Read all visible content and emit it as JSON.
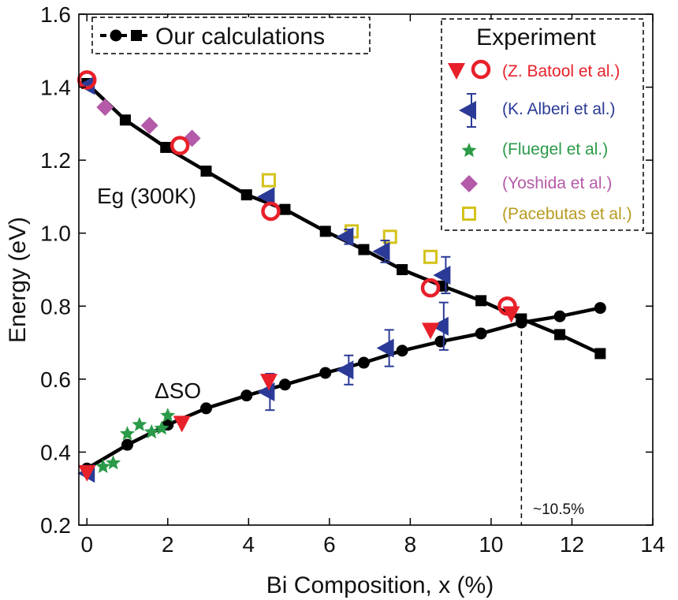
{
  "chart_data": {
    "type": "scatter",
    "title": "",
    "xlabel": "Bi Composition, x (%)",
    "ylabel": "Energy (eV)",
    "xlim": [
      -0.2,
      14
    ],
    "ylim": [
      0.2,
      1.6
    ],
    "xticks": [
      0,
      2,
      4,
      6,
      8,
      10,
      12,
      14
    ],
    "yticks": [
      0.2,
      0.4,
      0.6,
      0.8,
      1.0,
      1.2,
      1.4,
      1.6
    ],
    "xtick_labels": [
      "0",
      "2",
      "4",
      "6",
      "8",
      "10",
      "12",
      "14"
    ],
    "ytick_labels": [
      "0.2",
      "0.4",
      "0.6",
      "0.8",
      "1.0",
      "1.2",
      "1.4",
      "1.6"
    ],
    "grid": false,
    "annotations": {
      "eg": "Eg (300K)",
      "so": "ΔSO",
      "crossover": "~10.5%",
      "crossover_x": 10.75
    },
    "legend_ours": {
      "label": "Our calculations"
    },
    "legend_experiment": {
      "title": "Experiment",
      "entries": [
        {
          "label": "(Z. Batool et al.)",
          "color": "#e8202a"
        },
        {
          "label": "(K. Alberi et al.)",
          "color": "#2b3a96"
        },
        {
          "label": "(Fluegel et al.)",
          "color": "#2a9a48"
        },
        {
          "label": "(Yoshida et al.)",
          "color": "#b45aa8"
        },
        {
          "label": "(Pacebutas et al.)",
          "color": "#b79a1f"
        }
      ]
    },
    "series": [
      {
        "name": "Our calculations Eg",
        "marker": "square",
        "color": "#000000",
        "line": true,
        "x": [
          0,
          0.95,
          1.95,
          2.95,
          3.95,
          4.9,
          5.9,
          6.85,
          7.8,
          8.8,
          9.75,
          10.75,
          11.7,
          12.7
        ],
        "y": [
          1.41,
          1.31,
          1.235,
          1.17,
          1.105,
          1.065,
          1.005,
          0.955,
          0.9,
          0.855,
          0.815,
          0.765,
          0.722,
          0.67
        ]
      },
      {
        "name": "Our calculations ΔSO",
        "marker": "circle",
        "color": "#000000",
        "line": true,
        "x": [
          0,
          1.0,
          2.0,
          2.95,
          3.95,
          4.9,
          5.9,
          6.85,
          7.8,
          8.75,
          9.75,
          10.75,
          11.7,
          12.7
        ],
        "y": [
          0.355,
          0.42,
          0.475,
          0.52,
          0.555,
          0.585,
          0.617,
          0.645,
          0.678,
          0.703,
          0.725,
          0.755,
          0.772,
          0.795
        ]
      },
      {
        "name": "Z. Batool et al. Eg",
        "marker": "circle-open",
        "color": "#e8202a",
        "x": [
          0,
          2.3,
          4.55,
          8.5,
          10.4
        ],
        "y": [
          1.42,
          1.24,
          1.06,
          0.85,
          0.8
        ]
      },
      {
        "name": "Z. Batool et al. ΔSO",
        "marker": "triangle-down",
        "color": "#e8202a",
        "x": [
          0,
          2.35,
          4.5,
          8.5,
          10.5
        ],
        "y": [
          0.345,
          0.48,
          0.595,
          0.735,
          0.78
        ]
      },
      {
        "name": "K. Alberi et al. Eg",
        "marker": "triangle-left",
        "color": "#2b3a96",
        "x": [
          0,
          4.45,
          6.4,
          7.3,
          8.8
        ],
        "y": [
          1.405,
          1.1,
          0.99,
          0.95,
          0.885
        ],
        "err": [
          0,
          0,
          0.02,
          0.03,
          0.05
        ]
      },
      {
        "name": "K. Alberi et al. ΔSO",
        "marker": "triangle-left",
        "color": "#2b3a96",
        "x": [
          0,
          4.45,
          6.4,
          7.4,
          8.75
        ],
        "y": [
          0.342,
          0.565,
          0.625,
          0.685,
          0.745
        ],
        "err": [
          0,
          0.05,
          0.04,
          0.05,
          0.065
        ]
      },
      {
        "name": "Fluegel et al.",
        "marker": "star",
        "color": "#2a9a48",
        "x": [
          0.4,
          0.65,
          1.0,
          1.3,
          1.6,
          1.85,
          2.0
        ],
        "y": [
          0.36,
          0.37,
          0.45,
          0.475,
          0.455,
          0.465,
          0.5
        ]
      },
      {
        "name": "Yoshida et al.",
        "marker": "diamond",
        "color": "#b45aa8",
        "x": [
          0.45,
          1.55,
          2.6
        ],
        "y": [
          1.345,
          1.295,
          1.26
        ]
      },
      {
        "name": "Pacebutas et al.",
        "marker": "square-open",
        "color": "#d4c21a",
        "x": [
          4.5,
          6.55,
          7.5,
          8.5
        ],
        "y": [
          1.145,
          1.005,
          0.99,
          0.935
        ]
      }
    ]
  }
}
